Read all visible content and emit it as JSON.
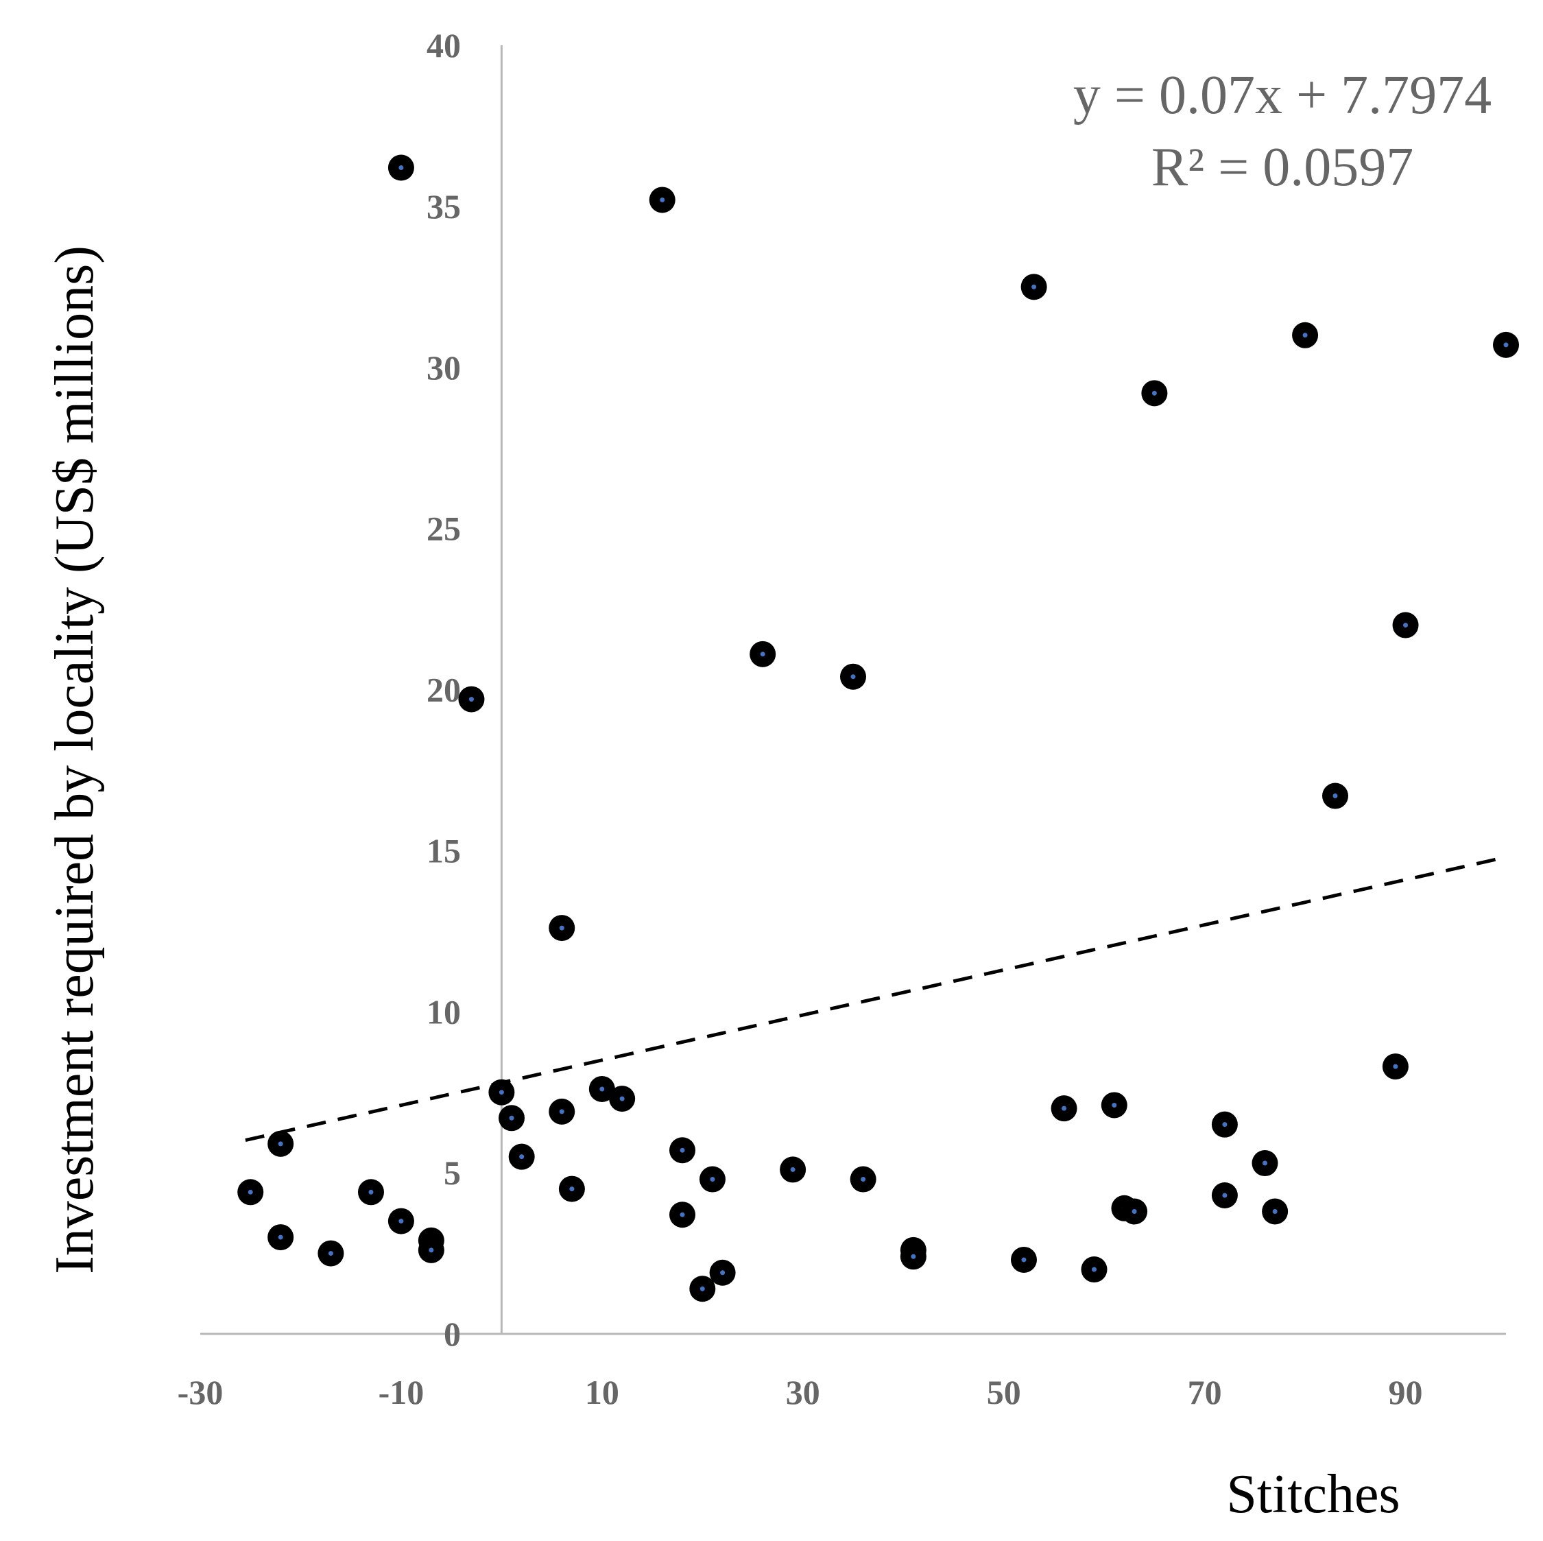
{
  "chart_data": {
    "type": "scatter",
    "xlabel": "Stitches",
    "ylabel": "Investment required by locality (US$ millions)",
    "xlim": [
      -30,
      100
    ],
    "ylim": [
      0,
      40
    ],
    "x_ticks": [
      "-30",
      "-10",
      "10",
      "30",
      "50",
      "70",
      "90"
    ],
    "y_ticks": [
      "0",
      "5",
      "10",
      "15",
      "20",
      "25",
      "30",
      "35",
      "40"
    ],
    "grid": false,
    "legend": "none",
    "marker_color": "#000000",
    "marker_center_color": "#4472c4",
    "trendline": {
      "type": "linear",
      "slope": 0.07,
      "intercept": 7.7974,
      "x_range": [
        -25.5,
        100
      ],
      "style": "dashed",
      "color": "#000000",
      "equation_label": "y = 0.07x + 7.7974",
      "r2_label": "R² = 0.0597"
    },
    "series": [
      {
        "points": [
          [
            -10,
            36.2
          ],
          [
            16,
            35.2
          ],
          [
            53,
            32.5
          ],
          [
            80,
            31.0
          ],
          [
            100,
            30.7
          ],
          [
            65,
            29.2
          ],
          [
            -3,
            19.7
          ],
          [
            26,
            21.1
          ],
          [
            35,
            20.4
          ],
          [
            90,
            22.0
          ],
          [
            83,
            16.7
          ],
          [
            6,
            12.6
          ],
          [
            89,
            8.3
          ],
          [
            0,
            7.5
          ],
          [
            1,
            6.7
          ],
          [
            6,
            6.9
          ],
          [
            10,
            7.6
          ],
          [
            12,
            7.3
          ],
          [
            56,
            7.0
          ],
          [
            61,
            7.1
          ],
          [
            72,
            6.5
          ],
          [
            -22,
            5.9
          ],
          [
            2,
            5.5
          ],
          [
            18,
            5.7
          ],
          [
            29,
            5.1
          ],
          [
            21,
            4.8
          ],
          [
            36,
            4.8
          ],
          [
            7,
            4.5
          ],
          [
            -25,
            4.4
          ],
          [
            -13,
            4.4
          ],
          [
            76,
            5.3
          ],
          [
            72,
            4.3
          ],
          [
            -10,
            3.5
          ],
          [
            18,
            3.7
          ],
          [
            62,
            3.9
          ],
          [
            63,
            3.8
          ],
          [
            77,
            3.8
          ],
          [
            -22,
            3.0
          ],
          [
            -17,
            2.5
          ],
          [
            -7,
            2.9
          ],
          [
            -7,
            2.6
          ],
          [
            41,
            2.6
          ],
          [
            41,
            2.4
          ],
          [
            52,
            2.3
          ],
          [
            59,
            2.0
          ],
          [
            22,
            1.9
          ],
          [
            20,
            1.4
          ]
        ]
      }
    ]
  }
}
